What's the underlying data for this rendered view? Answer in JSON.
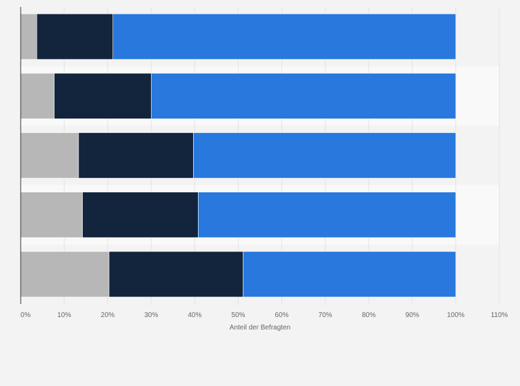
{
  "chart_data": {
    "type": "bar",
    "orientation": "horizontal",
    "stacked": true,
    "title": "",
    "xlabel": "Anteil der Befragten",
    "ylabel": "",
    "xlim": [
      0,
      110
    ],
    "x_ticks": [
      "0%",
      "10%",
      "20%",
      "30%",
      "40%",
      "50%",
      "60%",
      "70%",
      "80%",
      "90%",
      "100%",
      "110%"
    ],
    "grid": true,
    "legend": "none",
    "categories": [
      "",
      "",
      "",
      "",
      ""
    ],
    "series": [
      {
        "color": "#b7b7b7",
        "values": [
          3.7,
          7.7,
          13.3,
          14.2,
          20.3
        ]
      },
      {
        "color": "#12253d",
        "values": [
          17.5,
          22.3,
          26.4,
          26.6,
          30.8
        ]
      },
      {
        "color": "#2878de",
        "values": [
          78.8,
          70.0,
          60.3,
          59.2,
          48.9
        ]
      }
    ]
  }
}
